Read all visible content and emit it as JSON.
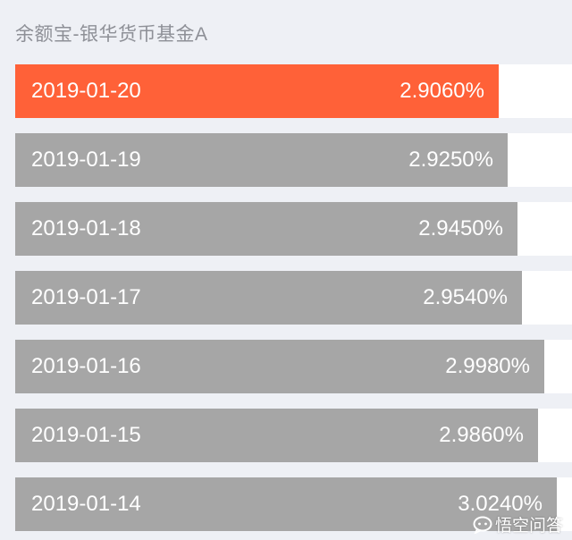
{
  "title": "余额宝-银华货币基金A",
  "colors": {
    "active": "#ff6138",
    "inactive": "#a6a6a6",
    "background": "#eef0f5"
  },
  "rows": [
    {
      "date": "2019-01-20",
      "rate": "2.9060%",
      "value": 2.906,
      "active": true
    },
    {
      "date": "2019-01-19",
      "rate": "2.9250%",
      "value": 2.925,
      "active": false
    },
    {
      "date": "2019-01-18",
      "rate": "2.9450%",
      "value": 2.945,
      "active": false
    },
    {
      "date": "2019-01-17",
      "rate": "2.9540%",
      "value": 2.954,
      "active": false
    },
    {
      "date": "2019-01-16",
      "rate": "2.9980%",
      "value": 2.998,
      "active": false
    },
    {
      "date": "2019-01-15",
      "rate": "2.9860%",
      "value": 2.986,
      "active": false
    },
    {
      "date": "2019-01-14",
      "rate": "3.0240%",
      "value": 3.024,
      "active": false
    }
  ],
  "watermark": {
    "icon": "chat-bubble-icon",
    "text": "悟空问答"
  }
}
